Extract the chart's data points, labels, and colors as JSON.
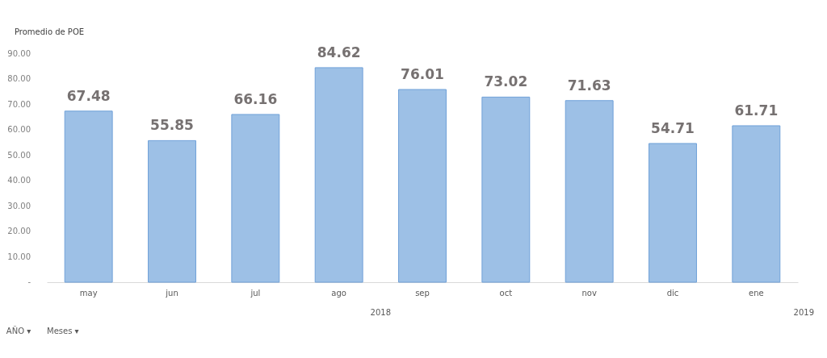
{
  "chart_data": {
    "type": "bar",
    "title": "Promedio de POE",
    "categories": [
      "may",
      "jun",
      "jul",
      "ago",
      "sep",
      "oct",
      "nov",
      "dic",
      "ene"
    ],
    "values": [
      67.48,
      55.85,
      66.16,
      84.62,
      76.01,
      73.02,
      71.63,
      54.71,
      61.71
    ],
    "color": "#9dc0e6",
    "ylim": [
      0,
      90
    ],
    "yticks": [
      {
        "value": 0,
        "label": "-"
      },
      {
        "value": 10,
        "label": "10.00"
      },
      {
        "value": 20,
        "label": "20.00"
      },
      {
        "value": 30,
        "label": "30.00"
      },
      {
        "value": 40,
        "label": "40.00"
      },
      {
        "value": 50,
        "label": "50.00"
      },
      {
        "value": 60,
        "label": "60.00"
      },
      {
        "value": 70,
        "label": "70.00"
      },
      {
        "value": 80,
        "label": "80.00"
      },
      {
        "value": 90,
        "label": "90.00"
      }
    ],
    "data_labels": true,
    "grid": false,
    "annotations": [
      "2018",
      "2019",
      "AÑO ▾",
      "Meses ▾"
    ]
  }
}
